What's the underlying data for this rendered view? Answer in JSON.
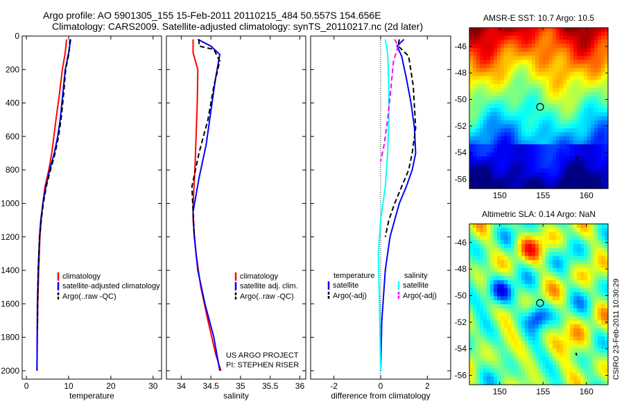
{
  "header": {
    "line1": "Argo profile: AO 5901305_155 15-Feb-2011 20110215_484 50.557S 154.656E",
    "line2": "Climatology: CARS2009. Satellite-adjusted climatology: synTS_20110217.nc (2d later)"
  },
  "credit": {
    "project": "US ARGO PROJECT",
    "pi": "PI: STEPHEN RISER",
    "csiro": "CSIRO 23-Feb-2011 10:30:29"
  },
  "colors": {
    "climatology": "#ff0000",
    "satellite": "#0000ff",
    "argo": "#000000",
    "sal_satellite": "#00ffff",
    "sal_argo": "#ff00ff"
  },
  "chart_data": [
    {
      "id": "temperature",
      "type": "line",
      "xlabel": "temperature",
      "ylabel": "",
      "xlim": [
        -1,
        32
      ],
      "ylim": [
        2050,
        0
      ],
      "xticks": [
        0,
        10,
        20,
        30
      ],
      "yticks": [
        0,
        200,
        400,
        600,
        800,
        1000,
        1200,
        1400,
        1600,
        1800,
        2000
      ],
      "legend": {
        "position": "lower-right",
        "entries": [
          "climatology",
          "satellite-adjusted climatology",
          "Argo(..raw -QC)"
        ]
      },
      "series": [
        {
          "name": "climatology",
          "color": "#ff0000",
          "dash": "solid",
          "x": [
            9.5,
            9.2,
            8.5,
            7.8,
            7.0,
            6.5,
            6.0,
            5.3,
            4.4,
            3.9,
            3.5,
            3.2,
            2.9,
            2.7,
            2.6,
            2.5
          ],
          "y": [
            20,
            100,
            200,
            350,
            500,
            600,
            700,
            800,
            900,
            1000,
            1100,
            1200,
            1400,
            1600,
            1800,
            2000
          ]
        },
        {
          "name": "satellite-adjusted climatology",
          "color": "#0000ff",
          "dash": "solid",
          "x": [
            10.5,
            10.0,
            9.2,
            8.6,
            8.0,
            7.4,
            6.6,
            5.5,
            4.6,
            3.9,
            3.4,
            3.1,
            2.8,
            2.6,
            2.5
          ],
          "y": [
            20,
            100,
            200,
            350,
            500,
            600,
            700,
            800,
            900,
            1000,
            1100,
            1200,
            1400,
            1600,
            2000
          ]
        },
        {
          "name": "Argo(..raw -QC)",
          "color": "#000000",
          "dash": "dashed",
          "x": [
            10.3,
            10.1,
            9.3,
            8.8,
            8.2,
            7.6,
            6.8,
            5.7,
            4.7,
            4.0,
            3.5,
            3.1,
            2.8,
            2.6
          ],
          "y": [
            20,
            100,
            200,
            350,
            500,
            600,
            700,
            800,
            900,
            1000,
            1100,
            1200,
            1400,
            1750
          ]
        }
      ]
    },
    {
      "id": "salinity",
      "type": "line",
      "xlabel": "salinity",
      "ylabel": "",
      "xlim": [
        33.75,
        36.1
      ],
      "ylim": [
        2050,
        0
      ],
      "xticks": [
        34,
        34.5,
        35,
        35.5,
        36
      ],
      "xticklabels": [
        "34",
        "34.5",
        "35",
        "35.5",
        "36"
      ],
      "legend": {
        "position": "lower-right",
        "entries": [
          "climatology",
          "satellite adj. clim.",
          "Argo(..raw -QC)"
        ]
      },
      "series": [
        {
          "name": "climatology",
          "color": "#ff0000",
          "dash": "solid",
          "x": [
            34.2,
            34.2,
            34.28,
            34.27,
            34.25,
            34.23,
            34.2,
            34.2,
            34.25,
            34.33,
            34.45,
            34.58,
            34.67
          ],
          "y": [
            20,
            100,
            200,
            400,
            600,
            800,
            1000,
            1100,
            1300,
            1500,
            1700,
            1900,
            2000
          ]
        },
        {
          "name": "satellite adj. clim.",
          "color": "#0000ff",
          "dash": "solid",
          "x": [
            34.28,
            34.5,
            34.65,
            34.58,
            34.5,
            34.42,
            34.3,
            34.2,
            34.22,
            34.28,
            34.4,
            34.55,
            34.65
          ],
          "y": [
            20,
            60,
            110,
            250,
            450,
            650,
            850,
            1050,
            1200,
            1400,
            1600,
            1800,
            2000
          ]
        },
        {
          "name": "Argo(..raw -QC)",
          "color": "#000000",
          "dash": "dashed",
          "x": [
            34.3,
            34.3,
            34.55,
            34.65,
            34.55,
            34.45,
            34.3,
            34.18,
            34.2,
            34.22
          ],
          "y": [
            20,
            60,
            80,
            150,
            300,
            500,
            700,
            900,
            1050,
            1200
          ]
        }
      ]
    },
    {
      "id": "difference",
      "type": "line",
      "xlabel": "difference from climatology",
      "ylabel": "",
      "xlim": [
        -3,
        3
      ],
      "ylim": [
        2050,
        0
      ],
      "xticks": [
        -2,
        0,
        2
      ],
      "legend_titles": [
        "temperature",
        "salinity"
      ],
      "legend": {
        "position": "lower-center",
        "entries": [
          "satellite",
          "Argo(-adj)",
          "satellite",
          "Argo(-adj)"
        ]
      },
      "series": [
        {
          "name": "temperature satellite",
          "color": "#0000ff",
          "dash": "solid",
          "x": [
            1.0,
            0.7,
            0.9,
            1.1,
            1.3,
            1.45,
            1.5,
            1.35,
            1.1,
            0.8,
            0.6,
            0.4,
            0.2,
            0.05,
            0.0
          ],
          "y": [
            20,
            60,
            120,
            250,
            400,
            550,
            700,
            800,
            900,
            1000,
            1100,
            1200,
            1400,
            1700,
            2000
          ]
        },
        {
          "name": "temperature Argo(-adj)",
          "color": "#000000",
          "dash": "dashed",
          "x": [
            0.8,
            0.75,
            1.2,
            1.4,
            1.5,
            1.35,
            1.2,
            0.9,
            0.6,
            0.35,
            0.2
          ],
          "y": [
            20,
            60,
            120,
            300,
            550,
            700,
            800,
            900,
            1000,
            1100,
            1200
          ]
        },
        {
          "name": "salinity satellite",
          "color": "#00ffff",
          "dash": "solid",
          "x": [
            0.2,
            0.3,
            0.35,
            0.35,
            0.3,
            0.2,
            0.0,
            -0.1,
            -0.05,
            0.0
          ],
          "y": [
            20,
            100,
            300,
            500,
            700,
            900,
            1100,
            1300,
            1600,
            2000
          ]
        },
        {
          "name": "salinity Argo(-adj)",
          "color": "#ff00ff",
          "dash": "dashed",
          "x": [
            0.6,
            0.75,
            0.55,
            0.45,
            0.3,
            0.15,
            0.0
          ],
          "y": [
            20,
            60,
            150,
            300,
            500,
            650,
            750
          ]
        }
      ]
    },
    {
      "id": "sst-map",
      "type": "heatmap",
      "title": "AMSR-E SST: 10.7 Argo: 10.5",
      "xlim": [
        146.5,
        162.5
      ],
      "ylim": [
        -56.7,
        -44.6
      ],
      "xticks": [
        150,
        155,
        160
      ],
      "yticks": [
        -46,
        -48,
        -50,
        -52,
        -54,
        -56
      ],
      "marker": {
        "lon": 154.656,
        "lat": -50.557
      }
    },
    {
      "id": "sla-map",
      "type": "heatmap",
      "title": "Altimetric SLA: 0.14 Argo: NaN",
      "xlim": [
        146.5,
        162.5
      ],
      "ylim": [
        -56.7,
        -44.6
      ],
      "xticks": [
        150,
        155,
        160
      ],
      "yticks": [
        -46,
        -48,
        -50,
        -52,
        -54,
        -56
      ],
      "marker": {
        "lon": 154.656,
        "lat": -50.557
      }
    }
  ]
}
